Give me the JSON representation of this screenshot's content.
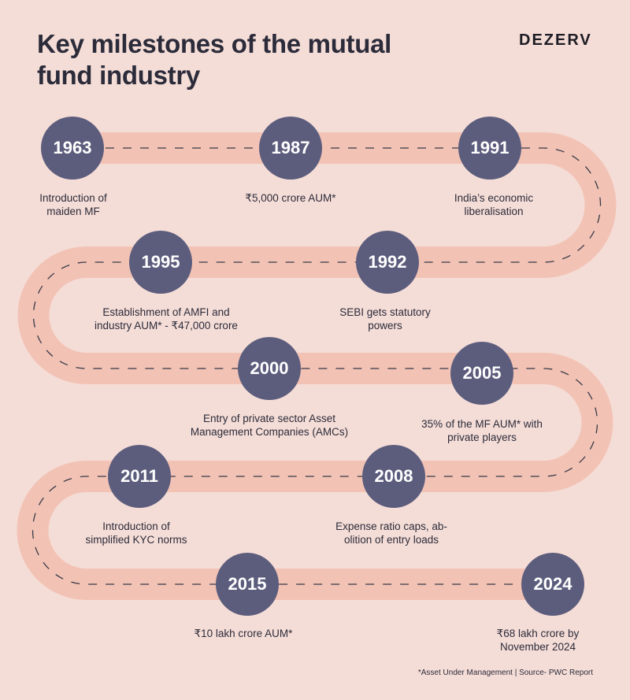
{
  "header": {
    "title_lines": [
      "Key milestones of the mutual",
      "fund industry"
    ],
    "brand": "DEZERV"
  },
  "milestones": [
    {
      "year": "1963",
      "lines": [
        "Introduction of",
        "maiden MF"
      ]
    },
    {
      "year": "1987",
      "lines": [
        "₹5,000 crore AUM*"
      ]
    },
    {
      "year": "1991",
      "lines": [
        "India’s economic",
        "liberalisation"
      ]
    },
    {
      "year": "1992",
      "lines": [
        "SEBI gets statutory",
        "powers"
      ]
    },
    {
      "year": "1995",
      "lines": [
        "Establishment of AMFI and",
        "industry AUM* - ₹47,000 crore"
      ]
    },
    {
      "year": "2000",
      "lines": [
        "Entry of private sector Asset",
        "Management Companies (AMCs)"
      ]
    },
    {
      "year": "2005",
      "lines": [
        "35% of the MF AUM* with",
        "private players"
      ]
    },
    {
      "year": "2008",
      "lines": [
        "Expense ratio caps, ab-",
        "olition of entry loads"
      ]
    },
    {
      "year": "2011",
      "lines": [
        "Introduction of",
        "simplified KYC norms"
      ]
    },
    {
      "year": "2015",
      "lines": [
        "₹10 lakh crore AUM*"
      ]
    },
    {
      "year": "2024",
      "lines": [
        "₹68 lakh crore by",
        "November 2024"
      ]
    }
  ],
  "footnote": "*Asset Under Management | Source- PWC Report",
  "colors": {
    "background": "#f5ddd7",
    "road": "#f2c3b5",
    "node": "#5c5d7d",
    "text": "#2b2b3a"
  }
}
